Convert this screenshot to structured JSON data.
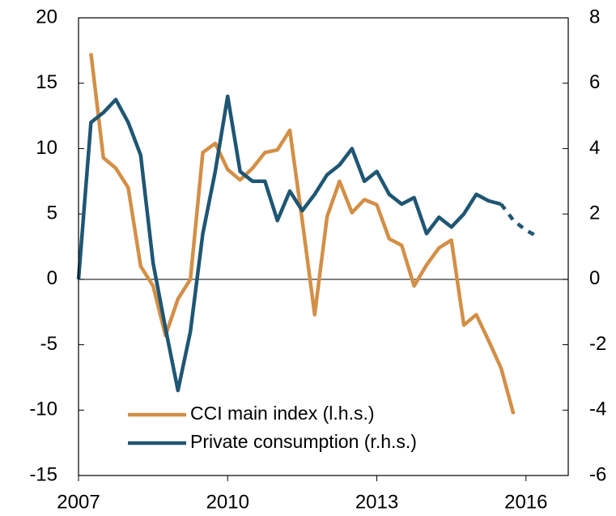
{
  "chart_data": {
    "type": "line",
    "xlim": [
      2007,
      2016.85
    ],
    "xticks": [
      2007,
      2010,
      2013,
      2016
    ],
    "ylim": [
      -15,
      20
    ],
    "yticks": [
      -15,
      -10,
      -5,
      0,
      5,
      10,
      15,
      20
    ],
    "y2lim": [
      -6,
      8
    ],
    "y2ticks": [
      -6,
      -4,
      -2,
      0,
      2,
      4,
      6,
      8
    ],
    "zero_line": true,
    "legend": "lower left",
    "series": [
      {
        "name": "CCI main index (l.h.s.)",
        "color": "#d38f47",
        "axis": "y",
        "x": [
          2007.25,
          2007.5,
          2007.75,
          2008.0,
          2008.25,
          2008.5,
          2008.75,
          2009.0,
          2009.25,
          2009.5,
          2009.75,
          2010.0,
          2010.25,
          2010.5,
          2010.75,
          2011.0,
          2011.25,
          2011.5,
          2011.75,
          2012.0,
          2012.25,
          2012.5,
          2012.75,
          2013.0,
          2013.25,
          2013.5,
          2013.75,
          2014.0,
          2014.25,
          2014.5,
          2014.75,
          2015.0,
          2015.25,
          2015.5,
          2015.75
        ],
        "values": [
          17.3,
          9.3,
          8.5,
          7.0,
          1.0,
          -0.5,
          -4.3,
          -1.5,
          0.0,
          9.7,
          10.4,
          8.4,
          7.6,
          8.5,
          9.7,
          9.9,
          11.4,
          4.5,
          -2.7,
          4.8,
          7.5,
          5.1,
          6.1,
          5.7,
          3.1,
          2.6,
          -0.5,
          1.1,
          2.4,
          3.0,
          -3.5,
          -2.7,
          -4.7,
          -6.8,
          -10.3
        ]
      },
      {
        "name": "Private consumption (r.h.s.)",
        "color": "#1f5673",
        "axis": "y2",
        "dash_from_index": 34,
        "x": [
          2007.0,
          2007.25,
          2007.5,
          2007.75,
          2008.0,
          2008.25,
          2008.5,
          2008.75,
          2009.0,
          2009.25,
          2009.5,
          2009.75,
          2010.0,
          2010.25,
          2010.5,
          2010.75,
          2011.0,
          2011.25,
          2011.5,
          2011.75,
          2012.0,
          2012.25,
          2012.5,
          2012.75,
          2013.0,
          2013.25,
          2013.5,
          2013.75,
          2014.0,
          2014.25,
          2014.5,
          2014.75,
          2015.0,
          2015.25,
          2015.5,
          2015.75,
          2016.0,
          2016.25
        ],
        "values": [
          0.0,
          4.8,
          5.1,
          5.5,
          4.8,
          3.8,
          0.5,
          -1.5,
          -3.4,
          -1.6,
          1.4,
          3.3,
          5.6,
          3.3,
          3.0,
          3.0,
          1.8,
          2.7,
          2.1,
          2.6,
          3.2,
          3.5,
          4.0,
          3.0,
          3.3,
          2.6,
          2.3,
          2.5,
          1.4,
          1.9,
          1.6,
          2.0,
          2.6,
          2.4,
          2.3,
          1.8,
          1.5,
          1.3
        ]
      }
    ]
  }
}
